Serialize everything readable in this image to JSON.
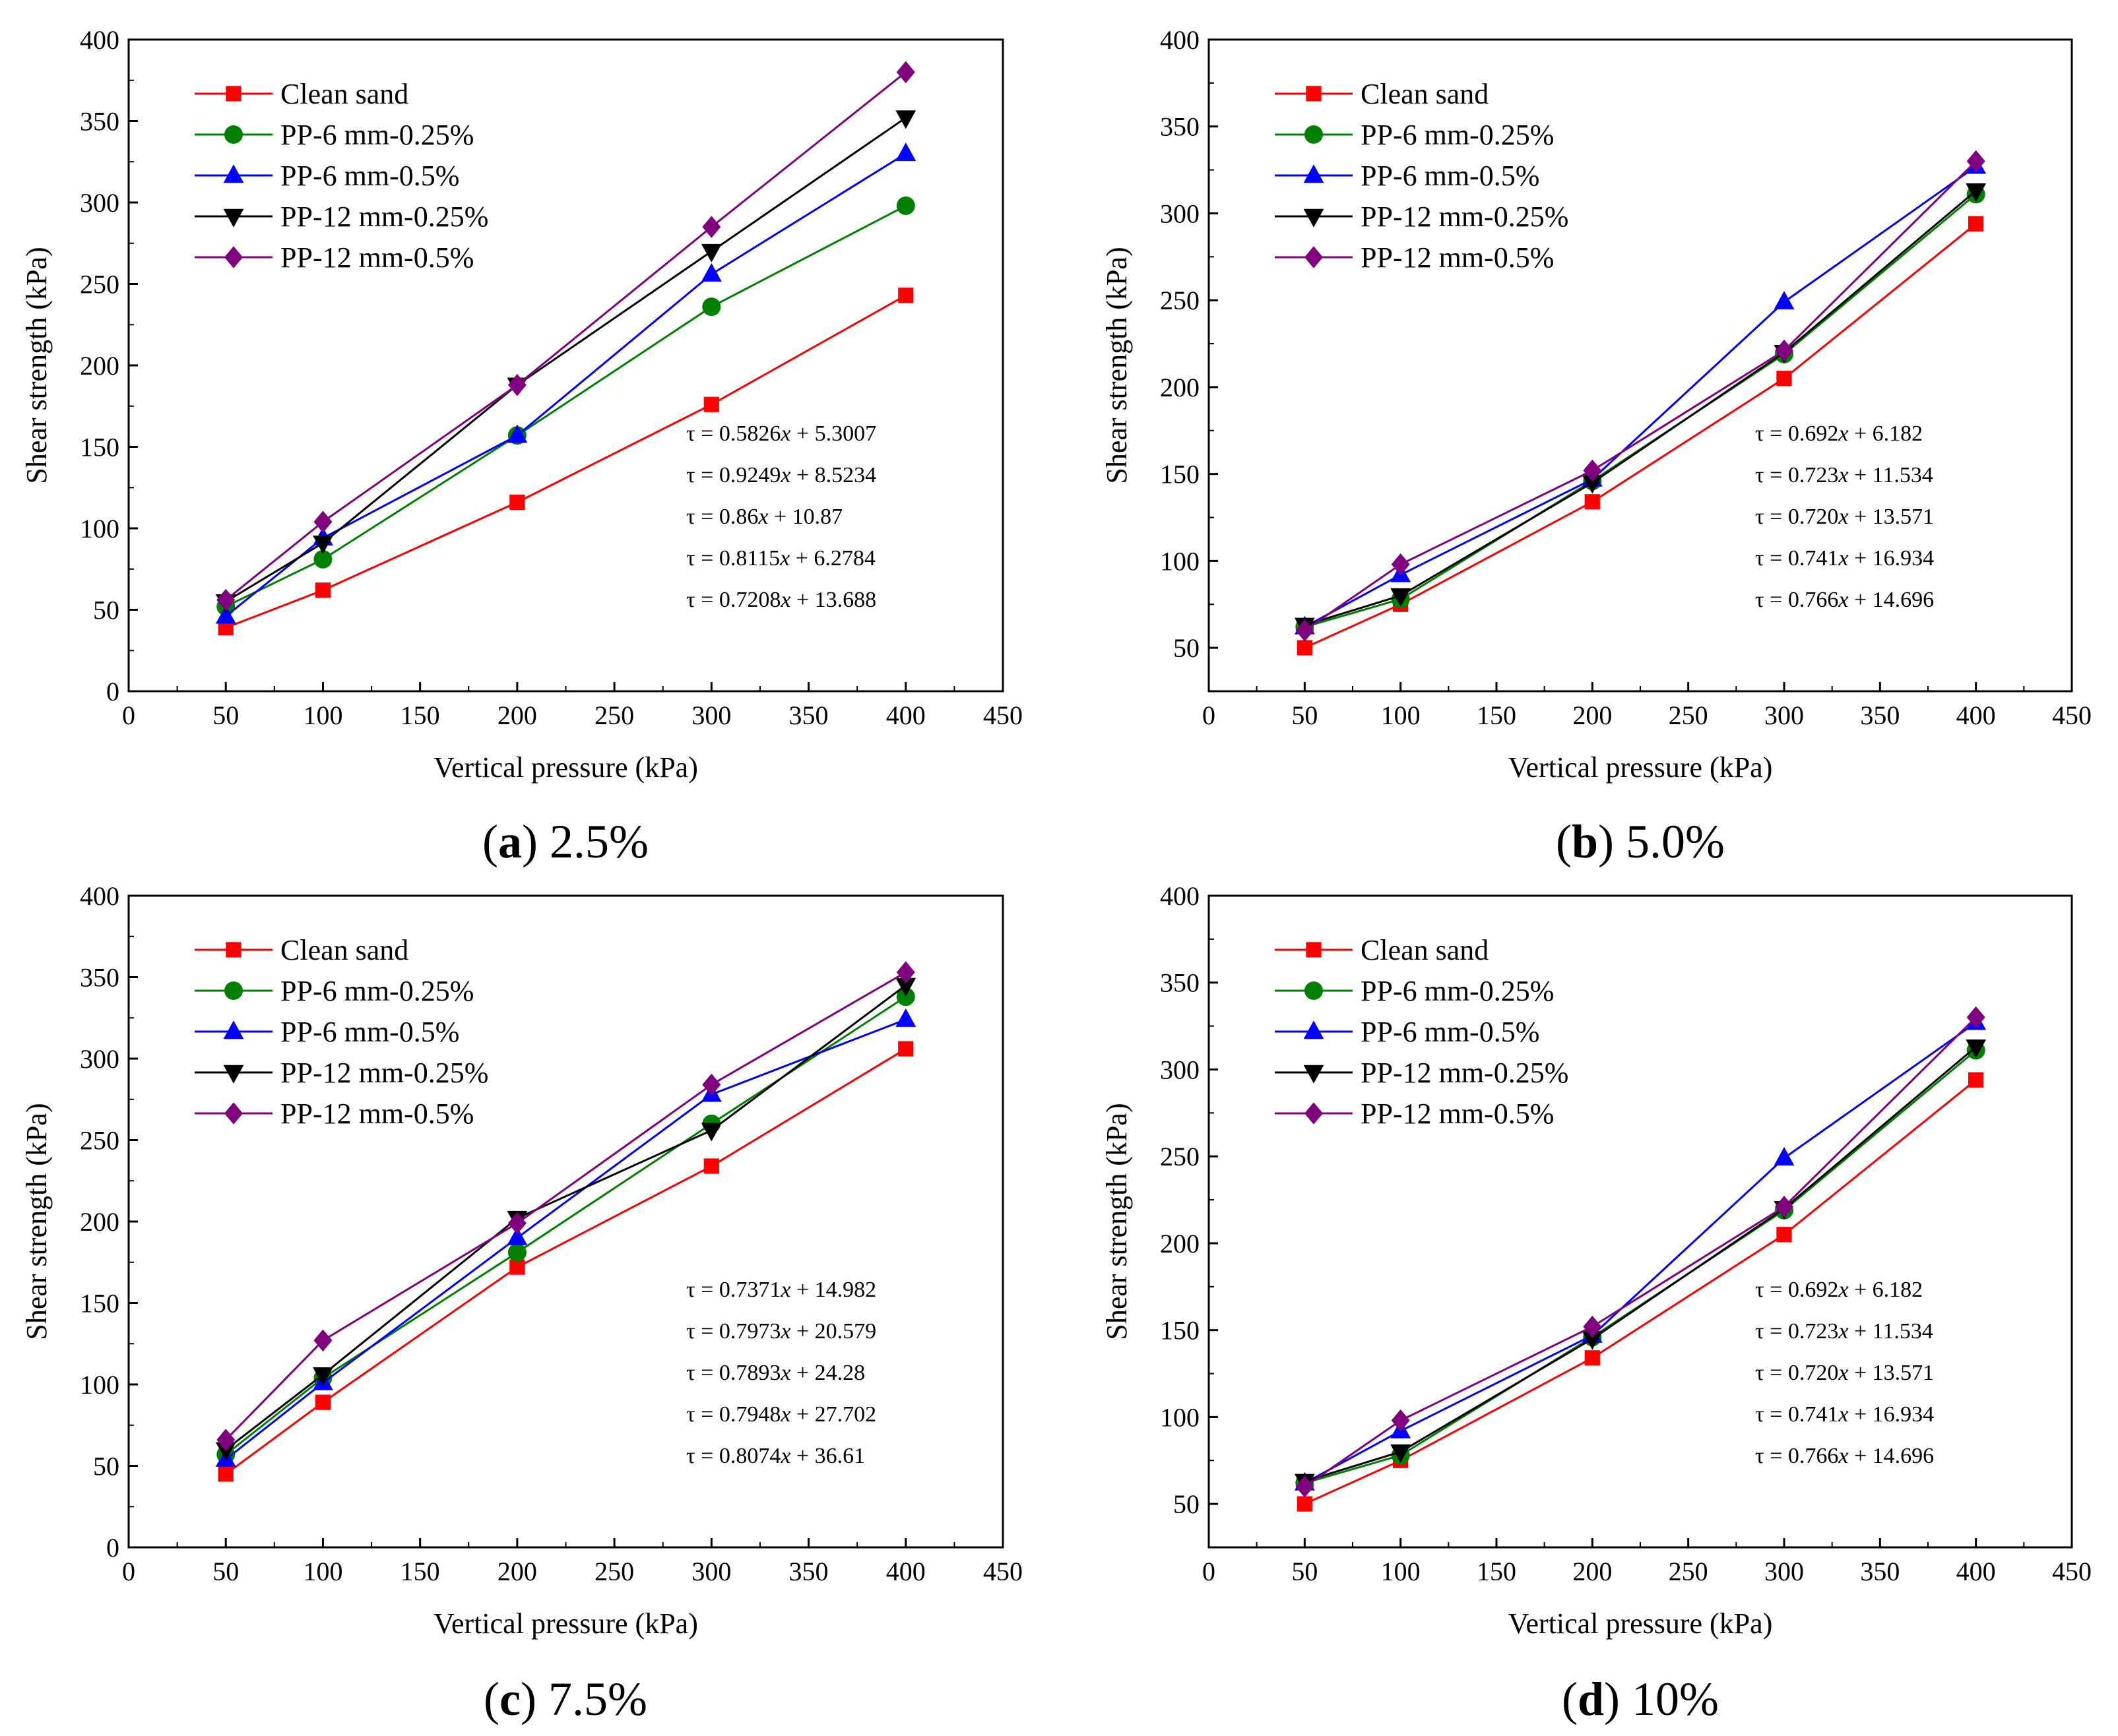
{
  "chart_data": [
    {
      "type": "line",
      "caption_letter": "a",
      "caption_text": "2.5%",
      "xlabel": "Vertical pressure (kPa)",
      "ylabel": "Shear strength (kPa)",
      "xlim": [
        0,
        450
      ],
      "ylim": [
        0,
        400
      ],
      "xticks": [
        0,
        50,
        100,
        150,
        200,
        250,
        300,
        350,
        400,
        450
      ],
      "yticks": [
        0,
        50,
        100,
        150,
        200,
        250,
        300,
        350,
        400
      ],
      "x": [
        50,
        100,
        200,
        300,
        400
      ],
      "series": [
        {
          "name": "Clean sand",
          "color": "#ff0000",
          "marker": "square",
          "values": [
            39,
            62,
            116,
            176,
            243
          ]
        },
        {
          "name": "PP-6 mm-0.25%",
          "color": "#008000",
          "marker": "circle",
          "values": [
            52,
            81,
            157,
            236,
            298
          ]
        },
        {
          "name": "PP-6 mm-0.5%",
          "color": "#0000ff",
          "marker": "triangle-up",
          "values": [
            46,
            94,
            157,
            256,
            330
          ]
        },
        {
          "name": "PP-12 mm-0.25%",
          "color": "#000000",
          "marker": "triangle-down",
          "values": [
            55,
            91,
            188,
            270,
            352
          ]
        },
        {
          "name": "PP-12 mm-0.5%",
          "color": "#800080",
          "marker": "diamond",
          "values": [
            56,
            104,
            188,
            285,
            380
          ]
        }
      ],
      "equations": [
        {
          "pre": "τ = 0.5826",
          "post": " + 5.3007"
        },
        {
          "pre": "τ = 0.9249",
          "post": " + 8.5234"
        },
        {
          "pre": "τ = 0.86",
          "post": " + 10.87"
        },
        {
          "pre": "τ = 0.8115",
          "post": " + 6.2784"
        },
        {
          "pre": "τ = 0.7208",
          "post": " + 13.688"
        }
      ]
    },
    {
      "type": "line",
      "caption_letter": "b",
      "caption_text": "5.0%",
      "xlabel": "Vertical pressure (kPa)",
      "ylabel": "Shear strength (kPa)",
      "xlim": [
        0,
        450
      ],
      "ylim": [
        25,
        400
      ],
      "xticks": [
        0,
        50,
        100,
        150,
        200,
        250,
        300,
        350,
        400,
        450
      ],
      "yticks": [
        50,
        100,
        150,
        200,
        250,
        300,
        350,
        400
      ],
      "x": [
        50,
        100,
        200,
        300,
        400
      ],
      "series": [
        {
          "name": "Clean sand",
          "color": "#ff0000",
          "marker": "square",
          "values": [
            50,
            75,
            134,
            205,
            294
          ]
        },
        {
          "name": "PP-6 mm-0.25%",
          "color": "#008000",
          "marker": "circle",
          "values": [
            62,
            78,
            146,
            219,
            311
          ]
        },
        {
          "name": "PP-6 mm-0.5%",
          "color": "#0000ff",
          "marker": "triangle-up",
          "values": [
            62,
            92,
            147,
            249,
            327
          ]
        },
        {
          "name": "PP-12 mm-0.25%",
          "color": "#000000",
          "marker": "triangle-down",
          "values": [
            63,
            80,
            145,
            220,
            313
          ]
        },
        {
          "name": "PP-12 mm-0.5%",
          "color": "#800080",
          "marker": "diamond",
          "values": [
            60,
            98,
            152,
            221,
            330
          ]
        }
      ],
      "equations": [
        {
          "pre": "τ = 0.692",
          "post": " + 6.182"
        },
        {
          "pre": "τ = 0.723",
          "post": " + 11.534"
        },
        {
          "pre": "τ = 0.720",
          "post": " + 13.571"
        },
        {
          "pre": "τ = 0.741",
          "post": " + 16.934"
        },
        {
          "pre": "τ = 0.766",
          "post": " + 14.696"
        }
      ]
    },
    {
      "type": "line",
      "caption_letter": "c",
      "caption_text": "7.5%",
      "xlabel": "Vertical pressure (kPa)",
      "ylabel": "Shear strength (kPa)",
      "xlim": [
        0,
        450
      ],
      "ylim": [
        0,
        400
      ],
      "xticks": [
        0,
        50,
        100,
        150,
        200,
        250,
        300,
        350,
        400,
        450
      ],
      "yticks": [
        0,
        50,
        100,
        150,
        200,
        250,
        300,
        350,
        400
      ],
      "x": [
        50,
        100,
        200,
        300,
        400
      ],
      "series": [
        {
          "name": "Clean sand",
          "color": "#ff0000",
          "marker": "square",
          "values": [
            45,
            89,
            172,
            234,
            306
          ]
        },
        {
          "name": "PP-6 mm-0.25%",
          "color": "#008000",
          "marker": "circle",
          "values": [
            57,
            104,
            181,
            260,
            338
          ]
        },
        {
          "name": "PP-6 mm-0.5%",
          "color": "#0000ff",
          "marker": "triangle-up",
          "values": [
            54,
            101,
            190,
            278,
            324
          ]
        },
        {
          "name": "PP-12 mm-0.25%",
          "color": "#000000",
          "marker": "triangle-down",
          "values": [
            60,
            106,
            202,
            256,
            345
          ]
        },
        {
          "name": "PP-12 mm-0.5%",
          "color": "#800080",
          "marker": "diamond",
          "values": [
            66,
            127,
            199,
            284,
            353
          ]
        }
      ],
      "equations": [
        {
          "pre": "τ = 0.7371",
          "post": " + 14.982"
        },
        {
          "pre": "τ = 0.7973",
          "post": " + 20.579"
        },
        {
          "pre": "τ = 0.7893",
          "post": " + 24.28"
        },
        {
          "pre": "τ = 0.7948",
          "post": " + 27.702"
        },
        {
          "pre": "τ = 0.8074",
          "post": " + 36.61"
        }
      ]
    },
    {
      "type": "line",
      "caption_letter": "d",
      "caption_text": "10%",
      "xlabel": "Vertical pressure (kPa)",
      "ylabel": "Shear strength (kPa)",
      "xlim": [
        0,
        450
      ],
      "ylim": [
        25,
        400
      ],
      "xticks": [
        0,
        50,
        100,
        150,
        200,
        250,
        300,
        350,
        400,
        450
      ],
      "yticks": [
        50,
        100,
        150,
        200,
        250,
        300,
        350,
        400
      ],
      "x": [
        50,
        100,
        200,
        300,
        400
      ],
      "series": [
        {
          "name": "Clean sand",
          "color": "#ff0000",
          "marker": "square",
          "values": [
            50,
            75,
            134,
            205,
            294
          ]
        },
        {
          "name": "PP-6 mm-0.25%",
          "color": "#008000",
          "marker": "circle",
          "values": [
            62,
            78,
            146,
            219,
            311
          ]
        },
        {
          "name": "PP-6 mm-0.5%",
          "color": "#0000ff",
          "marker": "triangle-up",
          "values": [
            62,
            92,
            147,
            249,
            327
          ]
        },
        {
          "name": "PP-12 mm-0.25%",
          "color": "#000000",
          "marker": "triangle-down",
          "values": [
            63,
            80,
            145,
            220,
            313
          ]
        },
        {
          "name": "PP-12 mm-0.5%",
          "color": "#800080",
          "marker": "diamond",
          "values": [
            60,
            98,
            152,
            221,
            330
          ]
        }
      ],
      "equations": [
        {
          "pre": "τ = 0.692",
          "post": " + 6.182"
        },
        {
          "pre": "τ = 0.723",
          "post": " + 11.534"
        },
        {
          "pre": "τ = 0.720",
          "post": " + 13.571"
        },
        {
          "pre": "τ = 0.741",
          "post": " + 16.934"
        },
        {
          "pre": "τ = 0.766",
          "post": " + 14.696"
        }
      ]
    }
  ]
}
